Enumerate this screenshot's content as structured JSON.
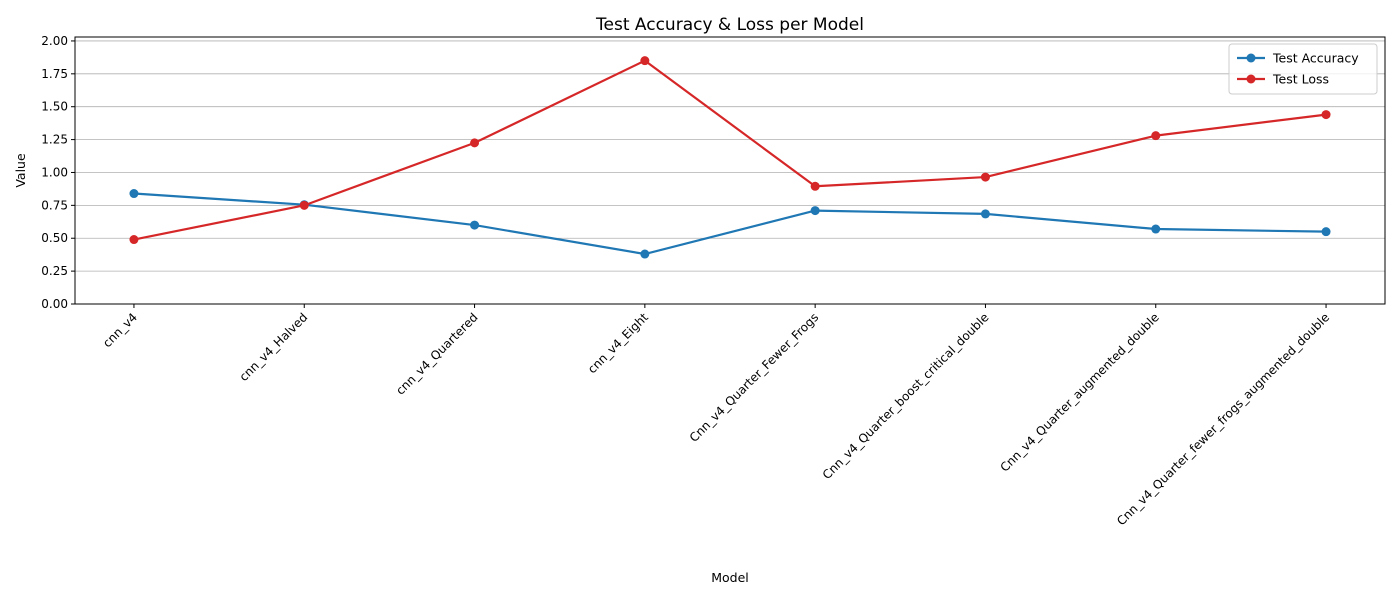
{
  "chart_data": {
    "type": "line",
    "title": "Test Accuracy & Loss per Model",
    "xlabel": "Model",
    "ylabel": "Value",
    "ylim": [
      0,
      2.03
    ],
    "yticks": [
      0.0,
      0.25,
      0.5,
      0.75,
      1.0,
      1.25,
      1.5,
      1.75,
      2.0
    ],
    "ytick_labels": [
      "0.00",
      "0.25",
      "0.50",
      "0.75",
      "1.00",
      "1.25",
      "1.50",
      "1.75",
      "2.00"
    ],
    "grid": "y-axis horizontal lines",
    "legend_position": "top-right",
    "categories": [
      "cnn_v4",
      "cnn_v4_Halved",
      "cnn_v4_Quartered",
      "cnn_v4_Eight",
      "Cnn_v4_Quarter_Fewer_Frogs",
      "Cnn_v4_Quarter_boost_critical_double",
      "Cnn_v4_Quarter_augmented_double",
      "Cnn_v4_Quarter_fewer_frogs_augmented_double"
    ],
    "series": [
      {
        "name": "Test Accuracy",
        "color": "#1f77b4",
        "values": [
          0.84,
          0.755,
          0.6,
          0.38,
          0.71,
          0.685,
          0.57,
          0.55
        ]
      },
      {
        "name": "Test Loss",
        "color": "#d62728",
        "values": [
          0.49,
          0.75,
          1.225,
          1.85,
          0.895,
          0.965,
          1.28,
          1.44
        ]
      }
    ]
  }
}
